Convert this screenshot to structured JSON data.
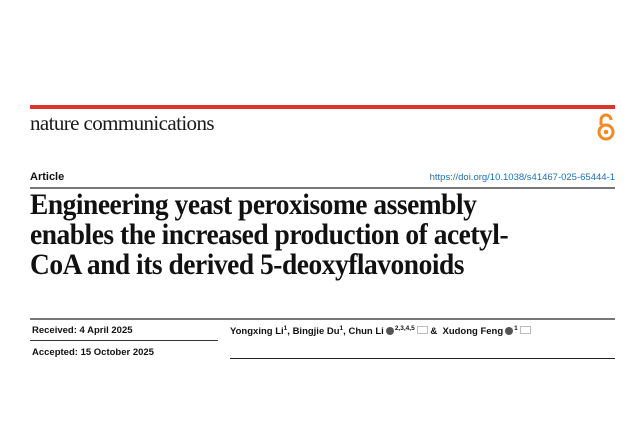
{
  "journal": "nature communications",
  "open_access_icon": "open-access-lock-icon",
  "colors": {
    "accent_bar": "#e0352b",
    "open_access": "#f08a24",
    "doi_link": "#1b6fb3"
  },
  "article_type": "Article",
  "doi": "https://doi.org/10.1038/s41467-025-65444-1",
  "title_lines": [
    "Engineering yeast peroxisome assembly",
    "enables the increased production of acetyl-",
    "CoA and its derived 5-deoxyflavonoids"
  ],
  "received": "Received: 4 April 2025",
  "accepted": "Accepted: 15 October 2025",
  "authors": [
    {
      "name": "Yongxing Li",
      "affil": "1",
      "sep": ", "
    },
    {
      "name": "Bingjie Du",
      "affil": "1",
      "sep": ", "
    },
    {
      "name": "Chun Li",
      "affil": "2,3,4,5",
      "sep": " & "
    },
    {
      "name": "Xudong Feng",
      "affil": "1",
      "sep": ""
    }
  ]
}
